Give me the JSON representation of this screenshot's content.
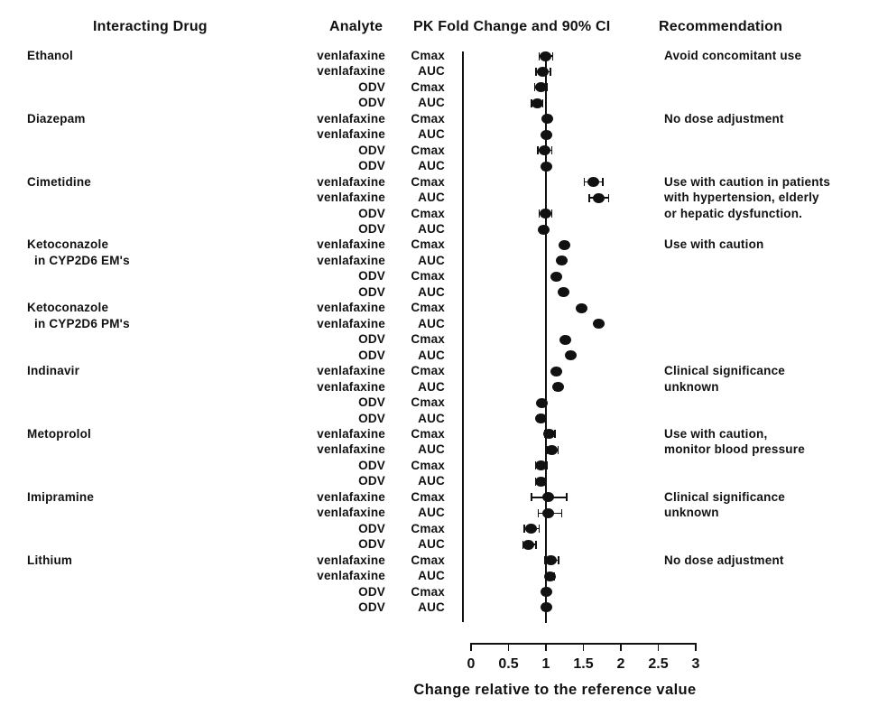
{
  "headers": {
    "interacting_drug": "Interacting Drug",
    "analyte": "Analyte",
    "pk_fold_change": "PK Fold Change and 90% CI",
    "recommendation": "Recommendation"
  },
  "axis": {
    "label": "Change relative to the reference value"
  },
  "colors": {
    "ink": "#111111",
    "background": "#ffffff"
  },
  "chart_data": {
    "type": "scatter",
    "subtype": "forest-plot-with-90pct-CI",
    "x_axis_label": "Change relative to the reference value",
    "xlim": [
      0,
      3
    ],
    "x_ticks": [
      0,
      0.5,
      1,
      1.5,
      2,
      2.5,
      3
    ],
    "reference_line_x": 1,
    "columns": [
      "Interacting Drug",
      "Analyte",
      "PK Fold Change and 90% CI",
      "Recommendation"
    ],
    "groups": [
      {
        "drug": "Ethanol",
        "drug_line2": "",
        "recommendation": [
          "Avoid concomitant use"
        ],
        "rows": [
          {
            "analyte": "venlafaxine",
            "param": "Cmax",
            "value": 0.99,
            "lo": 0.91,
            "hi": 1.09
          },
          {
            "analyte": "venlafaxine",
            "param": "AUC",
            "value": 0.96,
            "lo": 0.87,
            "hi": 1.06
          },
          {
            "analyte": "ODV",
            "param": "Cmax",
            "value": 0.93,
            "lo": 0.85,
            "hi": 1.02
          },
          {
            "analyte": "ODV",
            "param": "AUC",
            "value": 0.89,
            "lo": 0.81,
            "hi": 0.96
          }
        ]
      },
      {
        "drug": "Diazepam",
        "drug_line2": "",
        "recommendation": [
          "No dose adjustment"
        ],
        "rows": [
          {
            "analyte": "venlafaxine",
            "param": "Cmax",
            "value": 1.02,
            "lo": 0.98,
            "hi": 1.06
          },
          {
            "analyte": "venlafaxine",
            "param": "AUC",
            "value": 1.01,
            "lo": 0.97,
            "hi": 1.05
          },
          {
            "analyte": "ODV",
            "param": "Cmax",
            "value": 0.98,
            "lo": 0.89,
            "hi": 1.08
          },
          {
            "analyte": "ODV",
            "param": "AUC",
            "value": 1.0,
            "lo": 0.96,
            "hi": 1.04
          }
        ]
      },
      {
        "drug": "Cimetidine",
        "drug_line2": "",
        "recommendation": [
          "Use with caution in patients",
          "with hypertension, elderly",
          "or hepatic dysfunction."
        ],
        "rows": [
          {
            "analyte": "venlafaxine",
            "param": "Cmax",
            "value": 1.63,
            "lo": 1.51,
            "hi": 1.76
          },
          {
            "analyte": "venlafaxine",
            "param": "AUC",
            "value": 1.71,
            "lo": 1.58,
            "hi": 1.84
          },
          {
            "analyte": "ODV",
            "param": "Cmax",
            "value": 0.99,
            "lo": 0.91,
            "hi": 1.08
          },
          {
            "analyte": "ODV",
            "param": "AUC",
            "value": 0.97,
            "lo": 0.93,
            "hi": 1.01
          }
        ]
      },
      {
        "drug": "Ketoconazole",
        "drug_line2": "in CYP2D6 EM's",
        "recommendation": [
          "Use with caution"
        ],
        "rows": [
          {
            "analyte": "venlafaxine",
            "param": "Cmax",
            "value": 1.25,
            "lo": 1.21,
            "hi": 1.29
          },
          {
            "analyte": "venlafaxine",
            "param": "AUC",
            "value": 1.21,
            "lo": 1.17,
            "hi": 1.25
          },
          {
            "analyte": "ODV",
            "param": "Cmax",
            "value": 1.14,
            "lo": 1.1,
            "hi": 1.18
          },
          {
            "analyte": "ODV",
            "param": "AUC",
            "value": 1.23,
            "lo": 1.19,
            "hi": 1.27
          }
        ]
      },
      {
        "drug": "Ketoconazole",
        "drug_line2": "in CYP2D6 PM's",
        "recommendation": [],
        "rows": [
          {
            "analyte": "venlafaxine",
            "param": "Cmax",
            "value": 1.48,
            "lo": 1.44,
            "hi": 1.52
          },
          {
            "analyte": "venlafaxine",
            "param": "AUC",
            "value": 1.7,
            "lo": 1.66,
            "hi": 1.74
          },
          {
            "analyte": "ODV",
            "param": "Cmax",
            "value": 1.26,
            "lo": 1.22,
            "hi": 1.3
          },
          {
            "analyte": "ODV",
            "param": "AUC",
            "value": 1.33,
            "lo": 1.29,
            "hi": 1.37
          }
        ]
      },
      {
        "drug": "Indinavir",
        "drug_line2": "",
        "recommendation": [
          "Clinical significance",
          "unknown"
        ],
        "rows": [
          {
            "analyte": "venlafaxine",
            "param": "Cmax",
            "value": 1.14,
            "lo": 1.1,
            "hi": 1.18
          },
          {
            "analyte": "venlafaxine",
            "param": "AUC",
            "value": 1.16,
            "lo": 1.12,
            "hi": 1.2
          },
          {
            "analyte": "ODV",
            "param": "Cmax",
            "value": 0.95,
            "lo": 0.91,
            "hi": 0.99
          },
          {
            "analyte": "ODV",
            "param": "AUC",
            "value": 0.93,
            "lo": 0.89,
            "hi": 0.97
          }
        ]
      },
      {
        "drug": "Metoprolol",
        "drug_line2": "",
        "recommendation": [
          "Use with caution,",
          "monitor blood pressure"
        ],
        "rows": [
          {
            "analyte": "venlafaxine",
            "param": "Cmax",
            "value": 1.04,
            "lo": 0.98,
            "hi": 1.12
          },
          {
            "analyte": "venlafaxine",
            "param": "AUC",
            "value": 1.08,
            "lo": 1.01,
            "hi": 1.16
          },
          {
            "analyte": "ODV",
            "param": "Cmax",
            "value": 0.93,
            "lo": 0.86,
            "hi": 1.01
          },
          {
            "analyte": "ODV",
            "param": "AUC",
            "value": 0.93,
            "lo": 0.86,
            "hi": 0.99
          }
        ]
      },
      {
        "drug": "Imipramine",
        "drug_line2": "",
        "recommendation": [
          "Clinical significance",
          "unknown"
        ],
        "rows": [
          {
            "analyte": "venlafaxine",
            "param": "Cmax",
            "value": 1.03,
            "lo": 0.81,
            "hi": 1.28
          },
          {
            "analyte": "venlafaxine",
            "param": "AUC",
            "value": 1.03,
            "lo": 0.9,
            "hi": 1.21
          },
          {
            "analyte": "ODV",
            "param": "Cmax",
            "value": 0.8,
            "lo": 0.71,
            "hi": 0.91
          },
          {
            "analyte": "ODV",
            "param": "AUC",
            "value": 0.77,
            "lo": 0.69,
            "hi": 0.87
          }
        ]
      },
      {
        "drug": "Lithium",
        "drug_line2": "",
        "recommendation": [
          "No dose adjustment"
        ],
        "rows": [
          {
            "analyte": "venlafaxine",
            "param": "Cmax",
            "value": 1.07,
            "lo": 0.98,
            "hi": 1.17
          },
          {
            "analyte": "venlafaxine",
            "param": "AUC",
            "value": 1.06,
            "lo": 1.01,
            "hi": 1.11
          },
          {
            "analyte": "ODV",
            "param": "Cmax",
            "value": 1.0,
            "lo": 0.96,
            "hi": 1.04
          },
          {
            "analyte": "ODV",
            "param": "AUC",
            "value": 1.0,
            "lo": 0.96,
            "hi": 1.04
          }
        ]
      }
    ]
  }
}
